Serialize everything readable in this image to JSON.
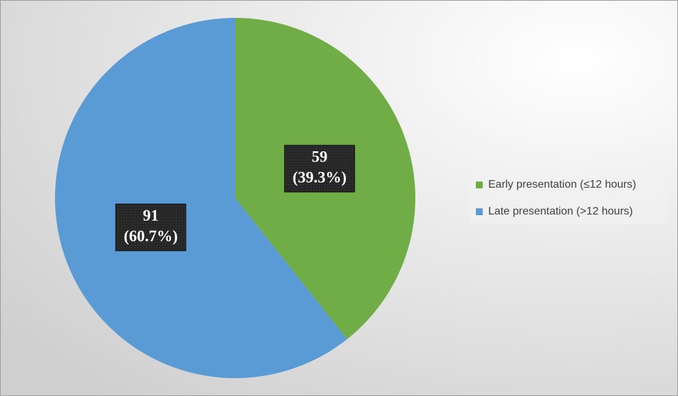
{
  "chart_data": {
    "type": "pie",
    "categories": [
      "Early presentation (≤12 hours)",
      "Late presentation (>12 hours)"
    ],
    "values": [
      59,
      91
    ],
    "value_labels": [
      [
        "59",
        "(39.3%)"
      ],
      [
        "91",
        "(60.7%)"
      ]
    ],
    "colors": [
      "#70ad47",
      "#5b9bd5"
    ],
    "legend": "right"
  }
}
